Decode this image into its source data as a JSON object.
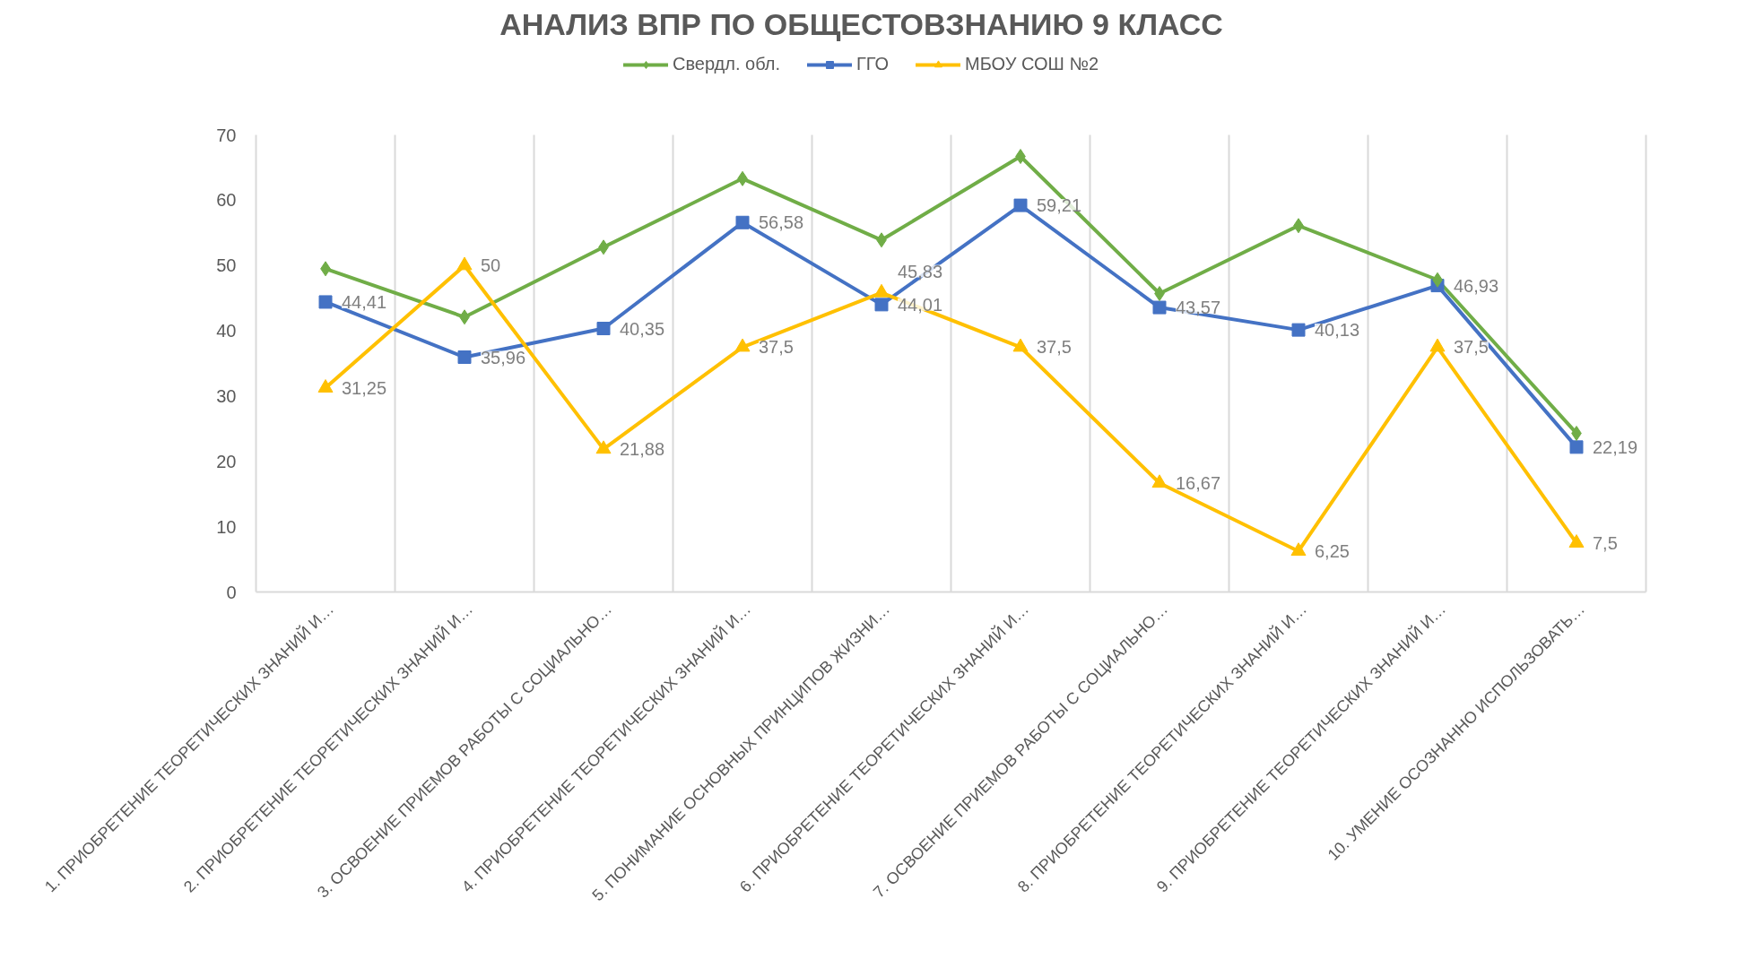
{
  "chart_data": {
    "type": "line",
    "title": "АНАЛИЗ ВПР ПО ОБЩЕСТОВЗНАНИЮ 9 КЛАСС",
    "categories": [
      "1. ПРИОБРЕТЕНИЕ ТЕОРЕТИЧЕСКИХ ЗНАНИЙ И…",
      "2. ПРИОБРЕТЕНИЕ ТЕОРЕТИЧЕСКИХ ЗНАНИЙ И…",
      "3. ОСВОЕНИЕ ПРИЕМОВ РАБОТЫ С СОЦИАЛЬНО…",
      "4. ПРИОБРЕТЕНИЕ ТЕОРЕТИЧЕСКИХ ЗНАНИЙ И…",
      "5. ПОНИМАНИЕ ОСНОВНЫХ ПРИНЦИПОВ ЖИЗНИ…",
      "6. ПРИОБРЕТЕНИЕ ТЕОРЕТИЧЕСКИХ ЗНАНИЙ И…",
      "7. ОСВОЕНИЕ ПРИЕМОВ РАБОТЫ С СОЦИАЛЬНО…",
      "8. ПРИОБРЕТЕНИЕ ТЕОРЕТИЧЕСКИХ ЗНАНИЙ И…",
      "9. ПРИОБРЕТЕНИЕ ТЕОРЕТИЧЕСКИХ ЗНАНИЙ И…",
      "10. УМЕНИЕ ОСОЗНАННО ИСПОЛЬЗОВАТЬ…"
    ],
    "series": [
      {
        "name": "Свердл. обл.",
        "color": "#70ad47",
        "marker": "diamond",
        "values": [
          49.5,
          42.1,
          52.8,
          63.3,
          53.9,
          66.7,
          45.7,
          56.1,
          47.8,
          24.3
        ]
      },
      {
        "name": "ГГО",
        "color": "#4472c4",
        "marker": "square",
        "values": [
          44.41,
          35.96,
          40.35,
          56.58,
          44.01,
          59.21,
          43.57,
          40.13,
          46.93,
          22.19
        ],
        "value_labels": [
          "44,41",
          "35,96",
          "40,35",
          "56,58",
          "44,01",
          "59,21",
          "43,57",
          "40,13",
          "46,93",
          "22,19"
        ]
      },
      {
        "name": "МБОУ СОШ №2",
        "color": "#ffc000",
        "marker": "triangle",
        "values": [
          31.25,
          50,
          21.88,
          37.5,
          45.83,
          37.5,
          16.67,
          6.25,
          37.5,
          7.5
        ],
        "value_labels": [
          "31,25",
          "50",
          "21,88",
          "37,5",
          "45,83",
          "37,5",
          "16,67",
          "6,25",
          "37,5",
          "7,5"
        ]
      }
    ],
    "ylim": [
      0,
      70
    ],
    "yticks": [
      0,
      10,
      20,
      30,
      40,
      50,
      60,
      70
    ],
    "grid": "x",
    "legend": "top",
    "line_style": "solid"
  }
}
